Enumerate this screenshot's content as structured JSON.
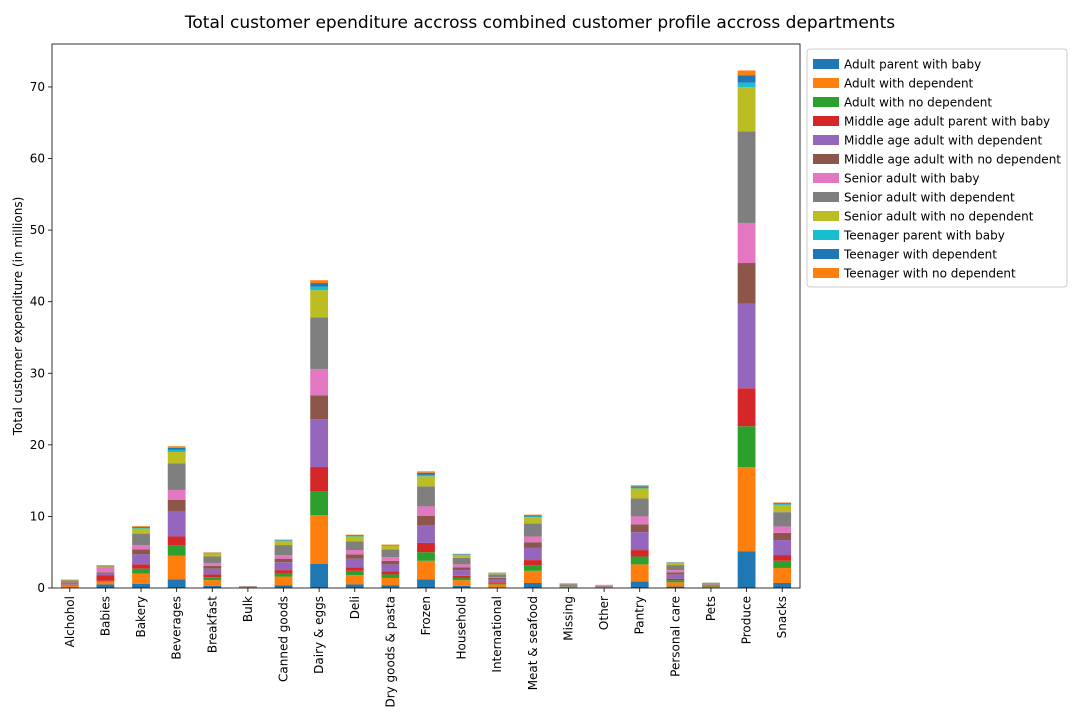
{
  "chart_data": {
    "type": "bar",
    "stacked": true,
    "title": "Total customer ependiture accross combined customer profile accross departments",
    "xlabel": "",
    "ylabel": "Total customer expenditure (in millions)",
    "ylim": [
      0,
      76
    ],
    "yticks": [
      0,
      10,
      20,
      30,
      40,
      50,
      60,
      70
    ],
    "grid": false,
    "legend_position": "top-right outside plot",
    "categories": [
      "Alchohol",
      "Babies",
      "Bakery",
      "Beverages",
      "Breakfast",
      "Bulk",
      "Canned goods",
      "Dairy & eggs",
      "Deli",
      "Dry goods & pasta",
      "Frozen",
      "Household",
      "International",
      "Meat & seafood",
      "Missing",
      "Other",
      "Pantry",
      "Personal care",
      "Pets",
      "Produce",
      "Snacks"
    ],
    "series": [
      {
        "name": "Adult parent with baby",
        "color": "#1f77b4",
        "values": [
          0.06,
          0.5,
          0.6,
          1.2,
          0.3,
          0.0,
          0.4,
          3.4,
          0.5,
          0.4,
          1.2,
          0.3,
          0.1,
          0.7,
          0.03,
          0.02,
          0.9,
          0.2,
          0.05,
          5.1,
          0.7
        ]
      },
      {
        "name": "Adult with dependent",
        "color": "#ff7f0e",
        "values": [
          0.3,
          0.4,
          1.4,
          3.3,
          0.8,
          0.1,
          1.2,
          6.8,
          1.3,
          1.0,
          2.6,
          0.8,
          0.4,
          1.7,
          0.13,
          0.09,
          2.4,
          0.6,
          0.15,
          11.8,
          2.1
        ]
      },
      {
        "name": "Adult with no dependent",
        "color": "#2ca02c",
        "values": [
          0.1,
          0.1,
          0.7,
          1.5,
          0.4,
          0.03,
          0.5,
          3.3,
          0.6,
          0.5,
          1.2,
          0.3,
          0.2,
          0.8,
          0.07,
          0.04,
          1.1,
          0.3,
          0.08,
          5.7,
          1.0
        ]
      },
      {
        "name": "Middle age adult parent with baby",
        "color": "#d62728",
        "values": [
          0.05,
          0.8,
          0.6,
          1.2,
          0.4,
          0.01,
          0.4,
          3.4,
          0.5,
          0.4,
          1.3,
          0.3,
          0.1,
          0.7,
          0.03,
          0.02,
          0.9,
          0.2,
          0.04,
          5.3,
          0.8
        ]
      },
      {
        "name": "Middle age adult with dependent",
        "color": "#9467bd",
        "values": [
          0.2,
          0.3,
          1.4,
          3.5,
          0.8,
          0.04,
          1.1,
          6.7,
          1.2,
          1.0,
          2.5,
          0.8,
          0.4,
          1.7,
          0.12,
          0.07,
          2.5,
          0.6,
          0.12,
          11.8,
          2.1
        ]
      },
      {
        "name": "Middle age adult with no dependent",
        "color": "#8c564b",
        "values": [
          0.1,
          0.1,
          0.7,
          1.6,
          0.4,
          0.03,
          0.5,
          3.3,
          0.6,
          0.5,
          1.3,
          0.4,
          0.2,
          0.8,
          0.06,
          0.04,
          1.1,
          0.3,
          0.07,
          5.7,
          1.0
        ]
      },
      {
        "name": "Senior adult with baby",
        "color": "#e377c2",
        "values": [
          0.05,
          0.7,
          0.6,
          1.4,
          0.4,
          0.01,
          0.5,
          3.7,
          0.6,
          0.5,
          1.3,
          0.4,
          0.1,
          0.8,
          0.03,
          0.02,
          1.1,
          0.3,
          0.04,
          5.6,
          0.9
        ]
      },
      {
        "name": "Senior adult with dependent",
        "color": "#7f7f7f",
        "values": [
          0.2,
          0.1,
          1.6,
          3.7,
          0.9,
          0.04,
          1.4,
          7.2,
          1.2,
          1.1,
          2.8,
          0.9,
          0.4,
          1.8,
          0.12,
          0.08,
          2.5,
          0.7,
          0.12,
          12.8,
          2.0
        ]
      },
      {
        "name": "Senior adult with no dependent",
        "color": "#bcbd22",
        "values": [
          0.1,
          0.1,
          0.7,
          1.6,
          0.4,
          0.02,
          0.6,
          3.8,
          0.7,
          0.5,
          1.4,
          0.4,
          0.2,
          0.9,
          0.06,
          0.04,
          1.4,
          0.3,
          0.06,
          6.2,
          1.0
        ]
      },
      {
        "name": "Teenager parent with baby",
        "color": "#17becf",
        "values": [
          0.01,
          0.05,
          0.1,
          0.3,
          0.05,
          0.0,
          0.05,
          0.5,
          0.1,
          0.05,
          0.2,
          0.05,
          0.02,
          0.1,
          0.01,
          0.0,
          0.1,
          0.03,
          0.01,
          0.6,
          0.1
        ]
      },
      {
        "name": "Teenager with dependent",
        "color": "#1f77b4",
        "values": [
          0.01,
          0.03,
          0.15,
          0.3,
          0.08,
          0.0,
          0.08,
          0.5,
          0.1,
          0.08,
          0.3,
          0.08,
          0.03,
          0.15,
          0.01,
          0.01,
          0.2,
          0.05,
          0.01,
          1.0,
          0.15
        ]
      },
      {
        "name": "Teenager with no dependent",
        "color": "#ff7f0e",
        "values": [
          0.01,
          0.02,
          0.1,
          0.2,
          0.05,
          0.0,
          0.05,
          0.4,
          0.05,
          0.05,
          0.2,
          0.05,
          0.02,
          0.1,
          0.01,
          0.01,
          0.15,
          0.03,
          0.01,
          0.7,
          0.1
        ]
      }
    ]
  }
}
